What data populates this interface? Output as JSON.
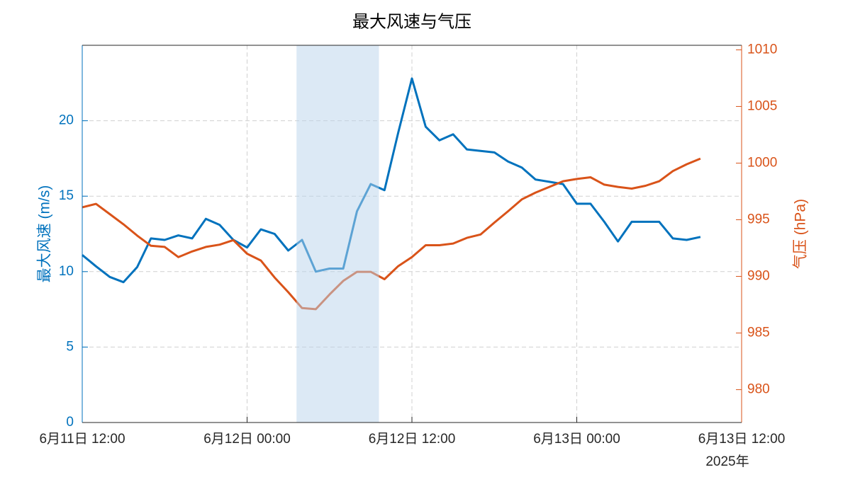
{
  "chart_data": {
    "type": "line",
    "title": "最大风速与气压",
    "x": [
      "2025-06-11T12:00",
      "2025-06-11T13:00",
      "2025-06-11T14:00",
      "2025-06-11T15:00",
      "2025-06-11T16:00",
      "2025-06-11T17:00",
      "2025-06-11T18:00",
      "2025-06-11T19:00",
      "2025-06-11T20:00",
      "2025-06-11T21:00",
      "2025-06-11T22:00",
      "2025-06-11T23:00",
      "2025-06-12T00:00",
      "2025-06-12T01:00",
      "2025-06-12T02:00",
      "2025-06-12T03:00",
      "2025-06-12T04:00",
      "2025-06-12T05:00",
      "2025-06-12T06:00",
      "2025-06-12T07:00",
      "2025-06-12T08:00",
      "2025-06-12T09:00",
      "2025-06-12T10:00",
      "2025-06-12T11:00",
      "2025-06-12T12:00",
      "2025-06-12T13:00",
      "2025-06-12T14:00",
      "2025-06-12T15:00",
      "2025-06-12T16:00",
      "2025-06-12T17:00",
      "2025-06-12T18:00",
      "2025-06-12T19:00",
      "2025-06-12T20:00",
      "2025-06-12T21:00",
      "2025-06-12T22:00",
      "2025-06-12T23:00",
      "2025-06-13T00:00",
      "2025-06-13T01:00",
      "2025-06-13T02:00",
      "2025-06-13T03:00",
      "2025-06-13T04:00",
      "2025-06-13T05:00",
      "2025-06-13T06:00",
      "2025-06-13T07:00",
      "2025-06-13T08:00",
      "2025-06-13T09:00"
    ],
    "series": [
      {
        "name": "最大风速 (m/s)",
        "color": "#0072bd",
        "values": [
          11.1,
          10.35,
          9.65,
          9.3,
          10.3,
          12.2,
          12.1,
          12.4,
          12.2,
          13.5,
          13.1,
          12.1,
          11.6,
          12.8,
          12.5,
          11.4,
          12.1,
          10.0,
          10.2,
          10.2,
          14.0,
          15.8,
          15.4,
          19.2,
          22.8,
          19.6,
          18.7,
          19.1,
          18.1,
          18.0,
          17.9,
          17.3,
          16.9,
          16.1,
          15.95,
          15.8,
          14.5,
          14.5,
          13.3,
          12.0,
          13.3,
          13.3,
          13.3,
          12.2,
          12.1,
          12.3
        ]
      },
      {
        "name": "气压 (hPa)",
        "color": "#d95319",
        "axis": "y2",
        "values": [
          996.1,
          996.4,
          995.5,
          994.6,
          993.6,
          992.7,
          992.6,
          991.7,
          992.2,
          992.6,
          992.8,
          993.2,
          992.0,
          991.4,
          989.9,
          988.6,
          987.2,
          987.1,
          988.4,
          989.6,
          990.4,
          990.4,
          989.75,
          990.9,
          991.7,
          992.75,
          992.75,
          992.9,
          993.4,
          993.7,
          994.75,
          995.75,
          996.8,
          997.4,
          997.9,
          998.4,
          998.6,
          998.75,
          998.1,
          997.9,
          997.75,
          998.0,
          998.4,
          999.3,
          999.9,
          1000.4
        ]
      }
    ],
    "xlim": [
      "2025-06-11T12:00",
      "2025-06-13T12:00"
    ],
    "xticks": [
      {
        "value": "2025-06-11T12:00",
        "label": "6月11日 12:00"
      },
      {
        "value": "2025-06-12T00:00",
        "label": "6月12日 00:00"
      },
      {
        "value": "2025-06-12T12:00",
        "label": "6月12日 12:00"
      },
      {
        "value": "2025-06-13T00:00",
        "label": "6月13日 00:00"
      },
      {
        "value": "2025-06-13T12:00",
        "label": "6月13日 12:00"
      }
    ],
    "x_secondary_label": "2025年",
    "ylim": [
      0,
      25
    ],
    "yticks": [
      0,
      5,
      10,
      15,
      20
    ],
    "y2lim": [
      977.1,
      1010.4
    ],
    "y2ticks": [
      980,
      985,
      990,
      995,
      1000,
      1005,
      1010
    ],
    "shaded_span": [
      "2025-06-12T03:36",
      "2025-06-12T09:36"
    ],
    "shade_color": "#b9d3ec",
    "grid": true
  }
}
